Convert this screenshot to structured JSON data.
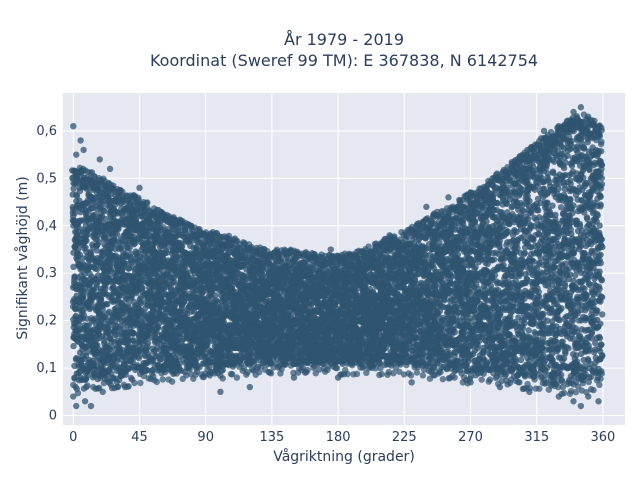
{
  "chart_data": {
    "type": "scatter",
    "title_line1": "År 1979 - 2019",
    "title_line2": "Koordinat (Sweref 99 TM): E 367838, N 6142754",
    "xlabel": "Vågriktning (grader)",
    "ylabel": "Signifikant våghöjd (m)",
    "xlim": [
      -7,
      375
    ],
    "ylim": [
      -0.02,
      0.68
    ],
    "x_ticks": [
      0,
      45,
      90,
      135,
      180,
      225,
      270,
      315,
      360
    ],
    "x_tick_labels": [
      "0",
      "45",
      "90",
      "135",
      "180",
      "225",
      "270",
      "315",
      "360"
    ],
    "y_ticks": [
      0,
      0.1,
      0.2,
      0.3,
      0.4,
      0.5,
      0.6
    ],
    "y_tick_labels": [
      "0",
      "0,1",
      "0,2",
      "0,3",
      "0,4",
      "0,5",
      "0,6"
    ],
    "grid": true,
    "legend": "none",
    "colors": {
      "marker": "#2f5470",
      "plot_bg": "#e5e8f1",
      "grid": "#ffffff",
      "text": "#2a3f5f"
    },
    "series": [
      {
        "band_x": [
          0,
          15,
          30,
          45,
          60,
          75,
          90,
          105,
          120,
          135,
          150,
          165,
          180,
          195,
          210,
          225,
          240,
          255,
          270,
          285,
          300,
          315,
          330,
          345,
          360
        ],
        "band_upper": [
          0.49,
          0.47,
          0.44,
          0.42,
          0.39,
          0.37,
          0.35,
          0.34,
          0.32,
          0.31,
          0.31,
          0.3,
          0.3,
          0.31,
          0.33,
          0.35,
          0.38,
          0.4,
          0.43,
          0.46,
          0.5,
          0.54,
          0.57,
          0.6,
          0.57
        ],
        "band_lower": [
          0.07,
          0.08,
          0.08,
          0.09,
          0.09,
          0.1,
          0.1,
          0.1,
          0.11,
          0.11,
          0.11,
          0.11,
          0.11,
          0.11,
          0.11,
          0.11,
          0.1,
          0.1,
          0.09,
          0.09,
          0.08,
          0.08,
          0.07,
          0.07,
          0.08
        ],
        "outliers": [
          {
            "x": 0,
            "y": 0.61
          },
          {
            "x": 2,
            "y": 0.55
          },
          {
            "x": 5,
            "y": 0.58
          },
          {
            "x": 7,
            "y": 0.56
          },
          {
            "x": 18,
            "y": 0.54
          },
          {
            "x": 25,
            "y": 0.52
          },
          {
            "x": 45,
            "y": 0.48
          },
          {
            "x": 65,
            "y": 0.42
          },
          {
            "x": 80,
            "y": 0.4
          },
          {
            "x": 105,
            "y": 0.36
          },
          {
            "x": 120,
            "y": 0.35
          },
          {
            "x": 175,
            "y": 0.35
          },
          {
            "x": 215,
            "y": 0.38
          },
          {
            "x": 240,
            "y": 0.44
          },
          {
            "x": 255,
            "y": 0.46
          },
          {
            "x": 270,
            "y": 0.47
          },
          {
            "x": 285,
            "y": 0.5
          },
          {
            "x": 300,
            "y": 0.51
          },
          {
            "x": 320,
            "y": 0.6
          },
          {
            "x": 330,
            "y": 0.61
          },
          {
            "x": 340,
            "y": 0.64
          },
          {
            "x": 345,
            "y": 0.65
          },
          {
            "x": 350,
            "y": 0.63
          },
          {
            "x": 355,
            "y": 0.6
          },
          {
            "x": 0,
            "y": 0.04
          },
          {
            "x": 2,
            "y": 0.02
          },
          {
            "x": 8,
            "y": 0.03
          },
          {
            "x": 12,
            "y": 0.02
          },
          {
            "x": 20,
            "y": 0.05
          },
          {
            "x": 30,
            "y": 0.06
          },
          {
            "x": 100,
            "y": 0.05
          },
          {
            "x": 120,
            "y": 0.06
          },
          {
            "x": 150,
            "y": 0.08
          },
          {
            "x": 180,
            "y": 0.08
          },
          {
            "x": 230,
            "y": 0.07
          },
          {
            "x": 270,
            "y": 0.07
          },
          {
            "x": 290,
            "y": 0.06
          },
          {
            "x": 310,
            "y": 0.05
          },
          {
            "x": 330,
            "y": 0.04
          },
          {
            "x": 340,
            "y": 0.03
          },
          {
            "x": 345,
            "y": 0.02
          },
          {
            "x": 350,
            "y": 0.04
          },
          {
            "x": 357,
            "y": 0.03
          }
        ]
      }
    ]
  }
}
